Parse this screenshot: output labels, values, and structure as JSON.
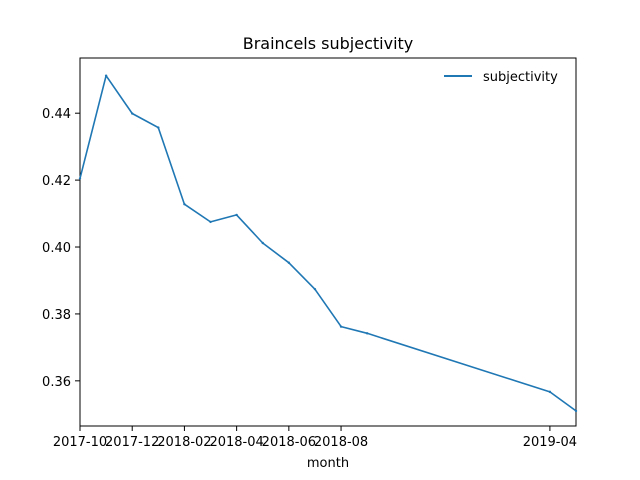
{
  "chart_data": {
    "type": "line",
    "title": "Braincels subjectivity",
    "xlabel": "month",
    "ylabel": "",
    "x": [
      "2017-10",
      "2017-11",
      "2017-12",
      "2018-01",
      "2018-02",
      "2018-03",
      "2018-04",
      "2018-05",
      "2018-06",
      "2018-07",
      "2018-08",
      "2018-09",
      "2018-10",
      "2018-11",
      "2018-12",
      "2019-01",
      "2019-02",
      "2019-03",
      "2019-04",
      "2019-05"
    ],
    "x_ticks": [
      "2017-10",
      "2017-12",
      "2018-02",
      "2018-04",
      "2018-06",
      "2018-08",
      "2019-04"
    ],
    "y_ticks": [
      0.36,
      0.38,
      0.4,
      0.42,
      0.44
    ],
    "y_tick_labels": [
      "0.36",
      "0.38",
      "0.40",
      "0.42",
      "0.44"
    ],
    "ylim": [
      0.3465,
      0.4565
    ],
    "series": [
      {
        "name": "subjectivity",
        "color": "#1f77b4",
        "values": [
          0.4205,
          0.4512,
          0.4399,
          0.4357,
          0.4128,
          0.4075,
          0.4096,
          0.4012,
          0.3953,
          0.3874,
          0.3762,
          0.3742,
          null,
          null,
          null,
          null,
          null,
          null,
          0.3567,
          0.351
        ]
      }
    ],
    "legend_position": "top-right",
    "grid": false
  }
}
